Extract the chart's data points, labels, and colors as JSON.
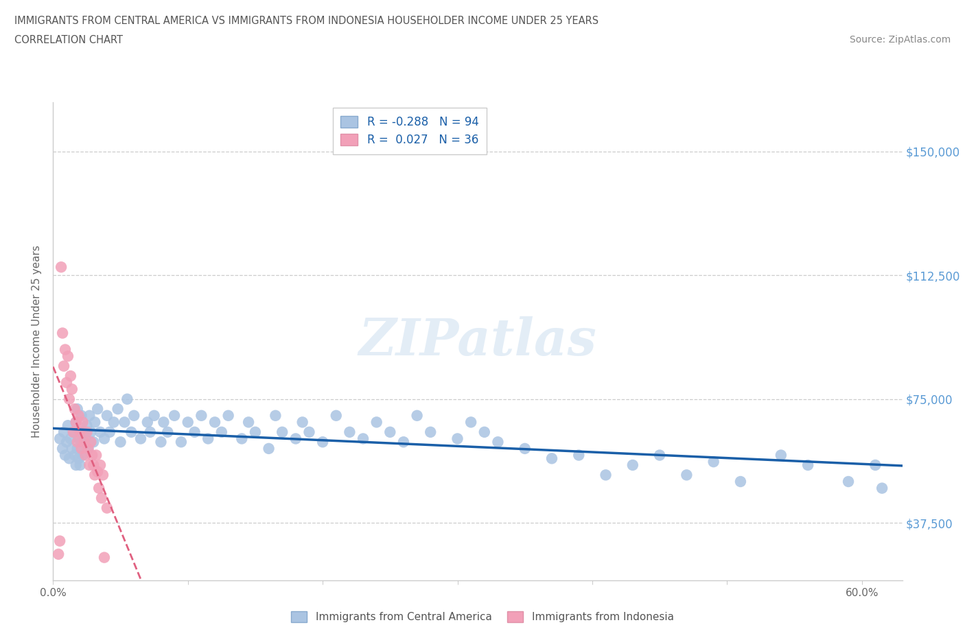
{
  "title_line1": "IMMIGRANTS FROM CENTRAL AMERICA VS IMMIGRANTS FROM INDONESIA HOUSEHOLDER INCOME UNDER 25 YEARS",
  "title_line2": "CORRELATION CHART",
  "source": "Source: ZipAtlas.com",
  "ylabel": "Householder Income Under 25 years",
  "watermark": "ZIPatlas",
  "r_central": -0.288,
  "n_central": 94,
  "r_indonesia": 0.027,
  "n_indonesia": 36,
  "xlim": [
    0.0,
    0.63
  ],
  "ylim": [
    20000,
    165000
  ],
  "yticks": [
    37500,
    75000,
    112500,
    150000
  ],
  "ytick_labels": [
    "$37,500",
    "$75,000",
    "$112,500",
    "$150,000"
  ],
  "xticks": [
    0.0,
    0.1,
    0.2,
    0.3,
    0.4,
    0.5,
    0.6
  ],
  "xtick_labels": [
    "0.0%",
    "",
    "",
    "",
    "",
    "",
    "60.0%"
  ],
  "color_central": "#aac4e2",
  "color_indonesia": "#f2a0b8",
  "trendline_central_color": "#1a5fa8",
  "trendline_indonesia_color": "#e06080",
  "legend_label_central": "Immigrants from Central America",
  "legend_label_indonesia": "Immigrants from Indonesia",
  "central_x": [
    0.005,
    0.007,
    0.008,
    0.009,
    0.01,
    0.011,
    0.012,
    0.013,
    0.014,
    0.015,
    0.016,
    0.017,
    0.017,
    0.018,
    0.018,
    0.019,
    0.019,
    0.02,
    0.02,
    0.021,
    0.021,
    0.022,
    0.023,
    0.024,
    0.025,
    0.026,
    0.027,
    0.028,
    0.03,
    0.031,
    0.033,
    0.035,
    0.038,
    0.04,
    0.042,
    0.045,
    0.048,
    0.05,
    0.053,
    0.055,
    0.058,
    0.06,
    0.065,
    0.07,
    0.072,
    0.075,
    0.08,
    0.082,
    0.085,
    0.09,
    0.095,
    0.1,
    0.105,
    0.11,
    0.115,
    0.12,
    0.125,
    0.13,
    0.14,
    0.145,
    0.15,
    0.16,
    0.165,
    0.17,
    0.18,
    0.185,
    0.19,
    0.2,
    0.21,
    0.22,
    0.23,
    0.24,
    0.25,
    0.26,
    0.27,
    0.28,
    0.3,
    0.31,
    0.32,
    0.33,
    0.35,
    0.37,
    0.39,
    0.41,
    0.43,
    0.45,
    0.47,
    0.49,
    0.51,
    0.54,
    0.56,
    0.59,
    0.61,
    0.615
  ],
  "central_y": [
    63000,
    60000,
    65000,
    58000,
    62000,
    67000,
    57000,
    63000,
    60000,
    65000,
    58000,
    55000,
    68000,
    60000,
    72000,
    57000,
    63000,
    65000,
    55000,
    62000,
    70000,
    58000,
    65000,
    63000,
    67000,
    60000,
    70000,
    65000,
    62000,
    68000,
    72000,
    65000,
    63000,
    70000,
    65000,
    68000,
    72000,
    62000,
    68000,
    75000,
    65000,
    70000,
    63000,
    68000,
    65000,
    70000,
    62000,
    68000,
    65000,
    70000,
    62000,
    68000,
    65000,
    70000,
    63000,
    68000,
    65000,
    70000,
    63000,
    68000,
    65000,
    60000,
    70000,
    65000,
    63000,
    68000,
    65000,
    62000,
    70000,
    65000,
    63000,
    68000,
    65000,
    62000,
    70000,
    65000,
    63000,
    68000,
    65000,
    62000,
    60000,
    57000,
    58000,
    52000,
    55000,
    58000,
    52000,
    56000,
    50000,
    58000,
    55000,
    50000,
    55000,
    48000
  ],
  "indonesia_x": [
    0.004,
    0.005,
    0.006,
    0.007,
    0.008,
    0.009,
    0.01,
    0.011,
    0.012,
    0.013,
    0.014,
    0.015,
    0.016,
    0.017,
    0.018,
    0.019,
    0.02,
    0.021,
    0.022,
    0.023,
    0.024,
    0.025,
    0.026,
    0.027,
    0.028,
    0.029,
    0.03,
    0.031,
    0.032,
    0.033,
    0.034,
    0.035,
    0.036,
    0.037,
    0.038,
    0.04
  ],
  "indonesia_y": [
    28000,
    32000,
    115000,
    95000,
    85000,
    90000,
    80000,
    88000,
    75000,
    82000,
    78000,
    65000,
    72000,
    68000,
    62000,
    70000,
    65000,
    60000,
    68000,
    62000,
    58000,
    65000,
    60000,
    55000,
    62000,
    58000,
    55000,
    52000,
    58000,
    53000,
    48000,
    55000,
    45000,
    52000,
    27000,
    42000
  ]
}
